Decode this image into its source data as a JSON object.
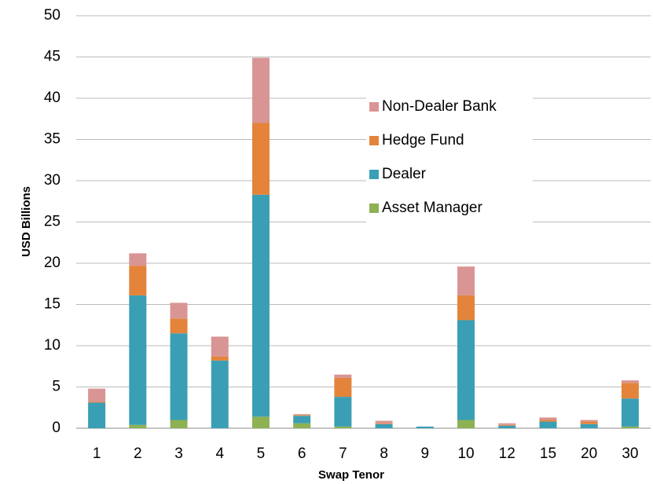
{
  "chart_data": {
    "type": "stacked_bar",
    "categories": [
      "1",
      "2",
      "3",
      "4",
      "5",
      "6",
      "7",
      "8",
      "9",
      "10",
      "12",
      "15",
      "20",
      "30"
    ],
    "series": [
      {
        "name": "Asset Manager",
        "color": "#8db153",
        "values": [
          0,
          0.4,
          1.0,
          0,
          1.4,
          0.6,
          0.2,
          0,
          0,
          1.0,
          0,
          0,
          0,
          0.2
        ]
      },
      {
        "name": "Dealer",
        "color": "#3a9fb5",
        "values": [
          3.1,
          15.7,
          10.5,
          8.2,
          26.9,
          0.9,
          3.6,
          0.5,
          0.2,
          12.1,
          0.3,
          0.8,
          0.5,
          3.4
        ]
      },
      {
        "name": "Hedge Fund",
        "color": "#e3843a",
        "values": [
          0.1,
          3.6,
          1.8,
          0.5,
          8.7,
          0.1,
          2.3,
          0.1,
          0,
          3.0,
          0.1,
          0.2,
          0.3,
          1.9
        ]
      },
      {
        "name": "Non-Dealer Bank",
        "color": "#d99594",
        "values": [
          1.6,
          1.5,
          1.9,
          2.4,
          7.9,
          0.1,
          0.4,
          0.3,
          0,
          3.5,
          0.2,
          0.3,
          0.2,
          0.3
        ]
      }
    ],
    "xlabel": "Swap Tenor",
    "ylabel": "USD Billions",
    "ylim": [
      0,
      50
    ],
    "yticks": [
      0,
      5,
      10,
      15,
      20,
      25,
      30,
      35,
      40,
      45,
      50
    ],
    "grid": true,
    "legend": "upper right"
  }
}
